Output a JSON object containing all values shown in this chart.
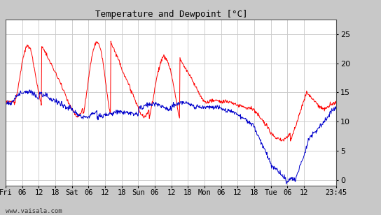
{
  "title": "Temperature and Dewpoint [°C]",
  "yticks": [
    0,
    5,
    10,
    15,
    20,
    25
  ],
  "ylim": [
    -1.0,
    27.5
  ],
  "background_color": "#ffffff",
  "outer_bg": "#c8c8c8",
  "temp_color": "#ff0000",
  "dew_color": "#0000cc",
  "grid_color": "#c8c8c8",
  "x_labels": [
    "Fri",
    "06",
    "12",
    "18",
    "Sat",
    "06",
    "12",
    "18",
    "Sun",
    "06",
    "12",
    "18",
    "Mon",
    "06",
    "12",
    "18",
    "Tue",
    "06",
    "12",
    "23:45"
  ],
  "tick_positions": [
    0,
    6,
    12,
    18,
    24,
    30,
    36,
    42,
    48,
    54,
    60,
    66,
    72,
    78,
    84,
    90,
    96,
    102,
    108,
    119.75
  ],
  "total_hours": 119.75,
  "n_points": 800,
  "watermark": "www.vaisala.com"
}
